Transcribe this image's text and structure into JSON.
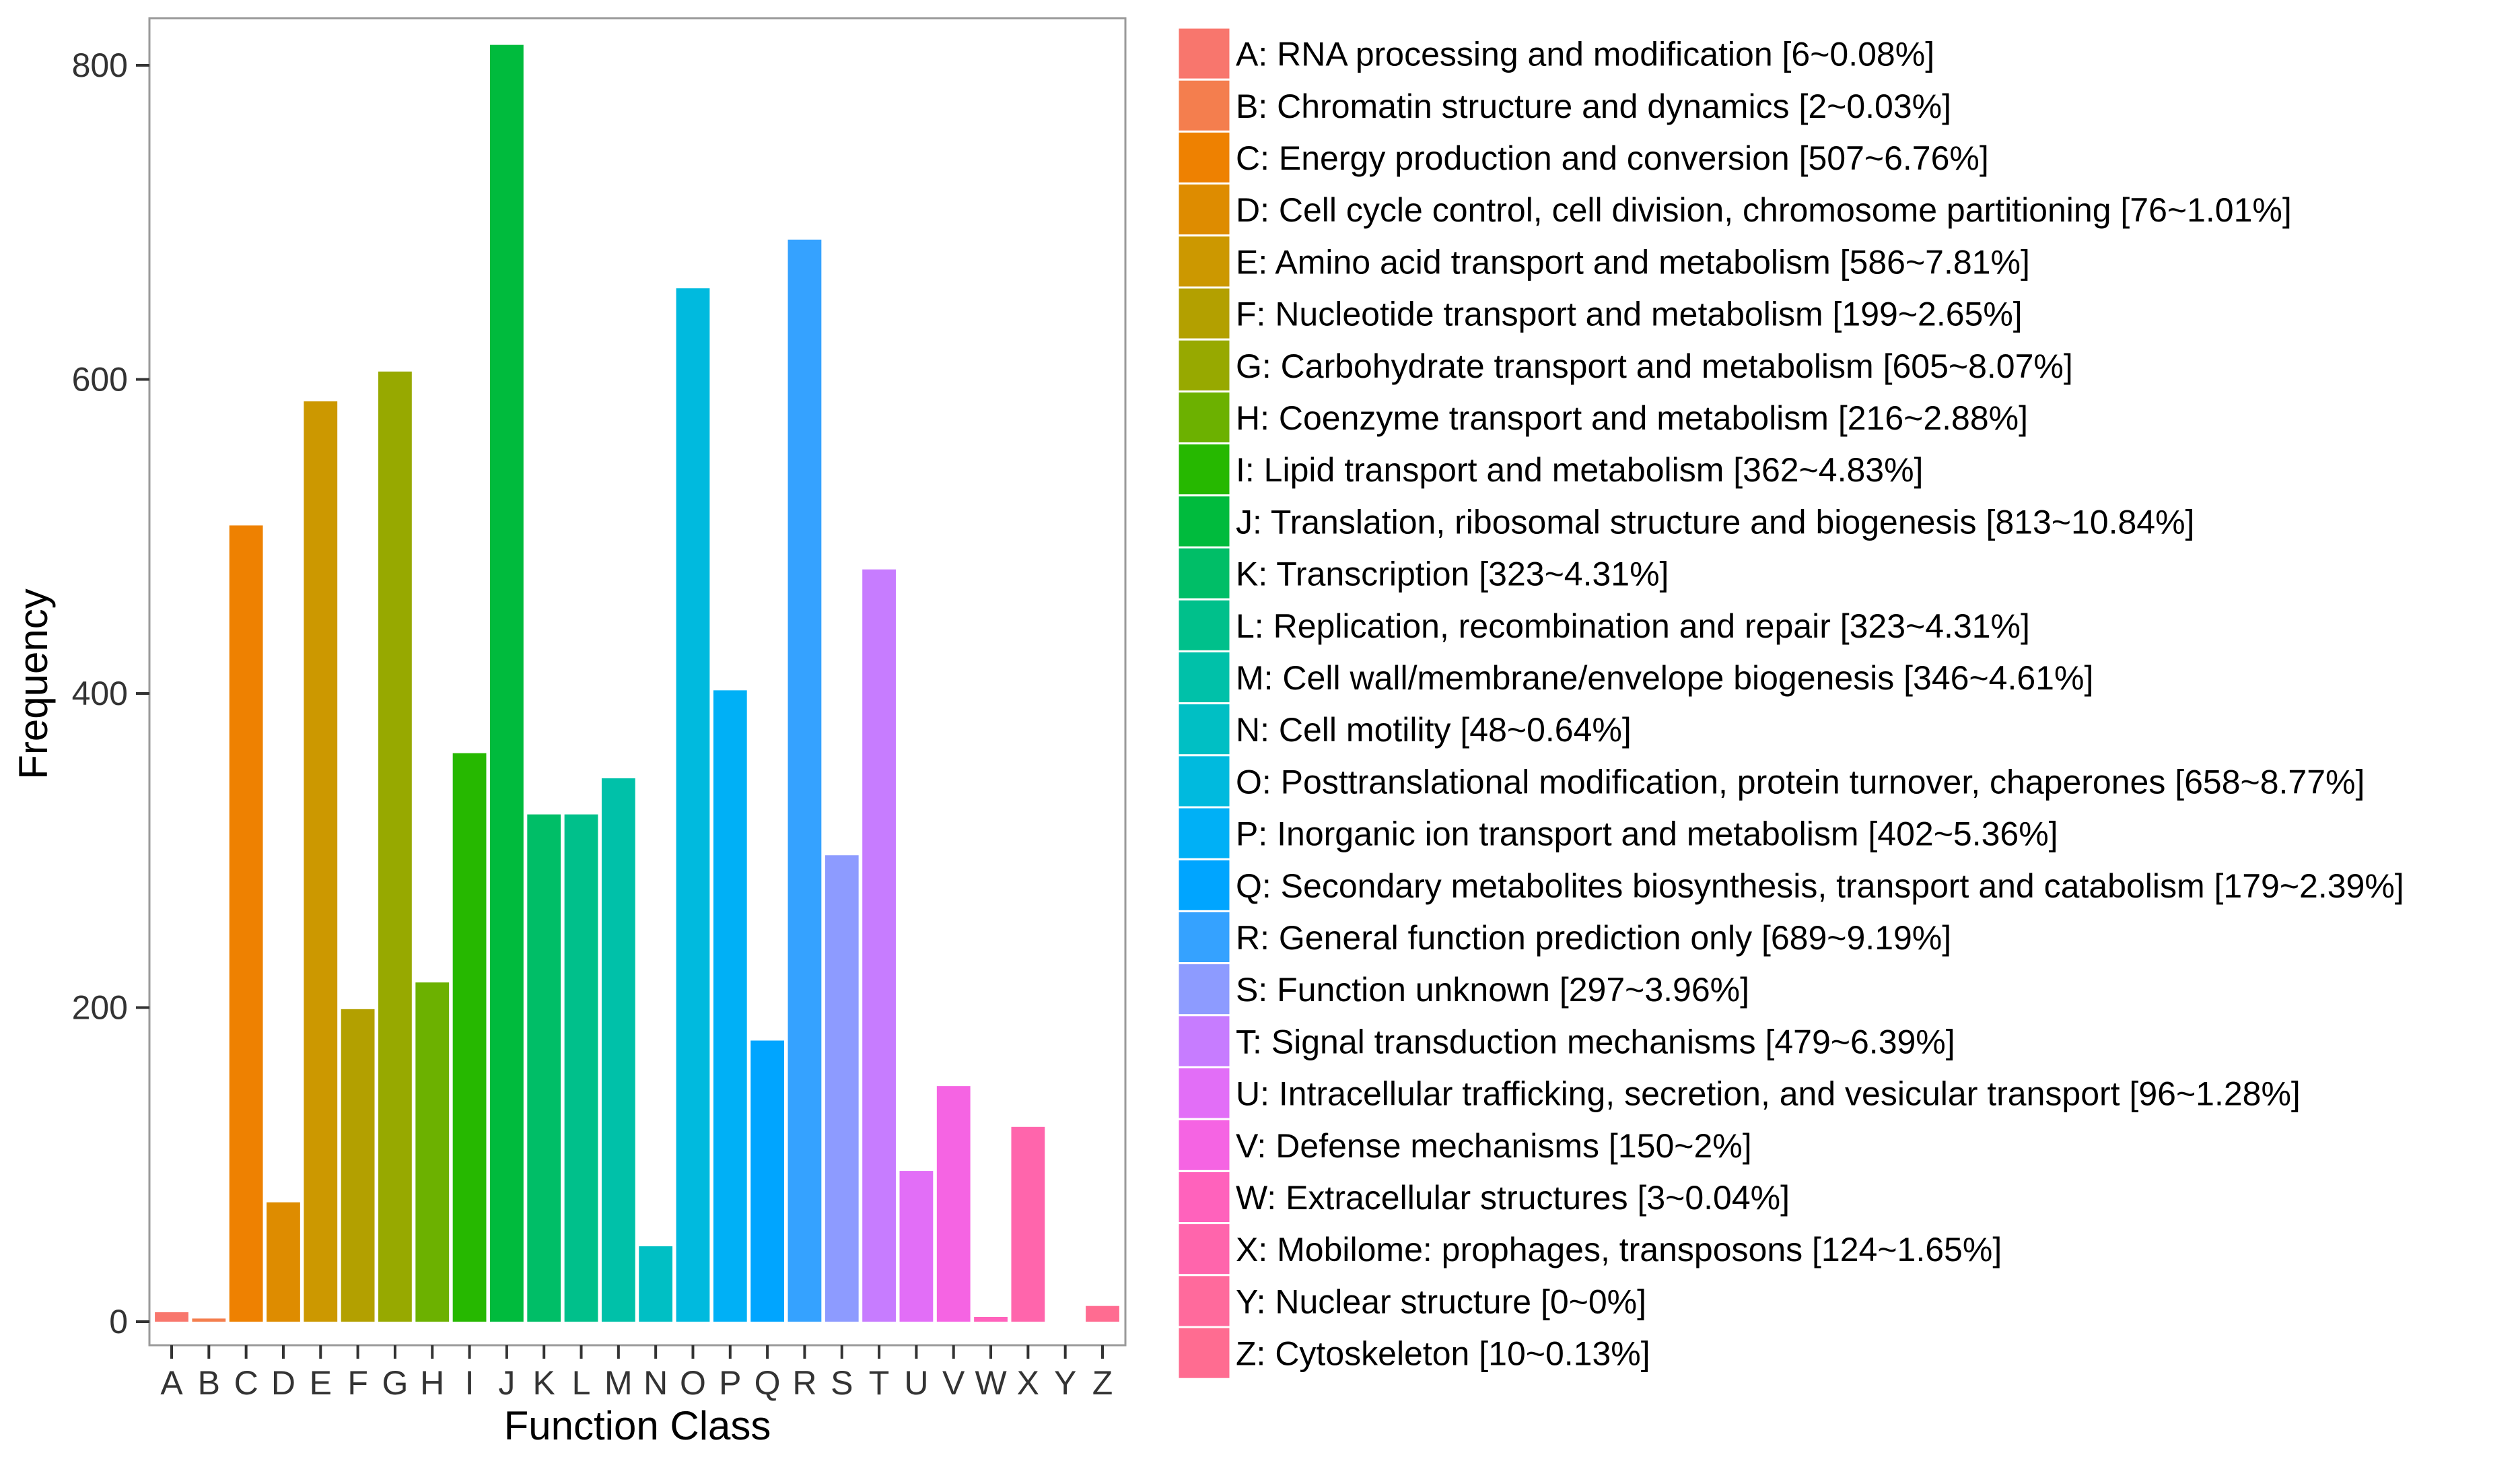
{
  "chart_data": {
    "type": "bar",
    "xlabel": "Function Class",
    "ylabel": "Frequency",
    "ylim": [
      -15,
      830
    ],
    "yticks": [
      0,
      200,
      400,
      600,
      800
    ],
    "grid": false,
    "legend_position": "right",
    "categories": [
      "A",
      "B",
      "C",
      "D",
      "E",
      "F",
      "G",
      "H",
      "I",
      "J",
      "K",
      "L",
      "M",
      "N",
      "O",
      "P",
      "Q",
      "R",
      "S",
      "T",
      "U",
      "V",
      "W",
      "X",
      "Y",
      "Z"
    ],
    "values": [
      6,
      2,
      507,
      76,
      586,
      199,
      605,
      216,
      362,
      813,
      323,
      323,
      346,
      48,
      658,
      402,
      179,
      689,
      297,
      479,
      96,
      150,
      3,
      124,
      0,
      10
    ],
    "colors": [
      "#F8766D",
      "#F47E4E",
      "#EE8101",
      "#DE8C00",
      "#CC9800",
      "#B3A000",
      "#97A900",
      "#6CB100",
      "#26B800",
      "#00BB3D",
      "#00BE67",
      "#00C08B",
      "#00C1A9",
      "#00BFC4",
      "#00BADE",
      "#00B0F6",
      "#00A5FF",
      "#35A2FF",
      "#8D9BFF",
      "#C77CFF",
      "#E26EF7",
      "#F564E3",
      "#FF62BC",
      "#FF65AC",
      "#FF6A9C",
      "#FF6C91"
    ],
    "legend": [
      "A: RNA processing and modification [6~0.08%]",
      "B: Chromatin structure and dynamics [2~0.03%]",
      "C: Energy production and conversion [507~6.76%]",
      "D: Cell cycle control, cell division, chromosome partitioning [76~1.01%]",
      "E: Amino acid transport and metabolism [586~7.81%]",
      "F: Nucleotide transport and metabolism [199~2.65%]",
      "G: Carbohydrate transport and metabolism [605~8.07%]",
      "H: Coenzyme transport and metabolism [216~2.88%]",
      "I: Lipid transport and metabolism [362~4.83%]",
      "J: Translation, ribosomal structure and biogenesis [813~10.84%]",
      "K: Transcription [323~4.31%]",
      "L: Replication, recombination and repair [323~4.31%]",
      "M: Cell wall/membrane/envelope biogenesis [346~4.61%]",
      "N: Cell motility [48~0.64%]",
      "O: Posttranslational modification, protein turnover, chaperones [658~8.77%]",
      "P: Inorganic ion transport and metabolism [402~5.36%]",
      "Q: Secondary metabolites biosynthesis, transport and catabolism [179~2.39%]",
      "R: General function prediction only [689~9.19%]",
      "S: Function unknown [297~3.96%]",
      "T: Signal transduction mechanisms [479~6.39%]",
      "U: Intracellular trafficking, secretion, and vesicular transport [96~1.28%]",
      "V: Defense mechanisms [150~2%]",
      "W: Extracellular structures [3~0.04%]",
      "X: Mobilome: prophages, transposons [124~1.65%]",
      "Y: Nuclear structure [0~0%]",
      "Z: Cytoskeleton [10~0.13%]"
    ]
  }
}
